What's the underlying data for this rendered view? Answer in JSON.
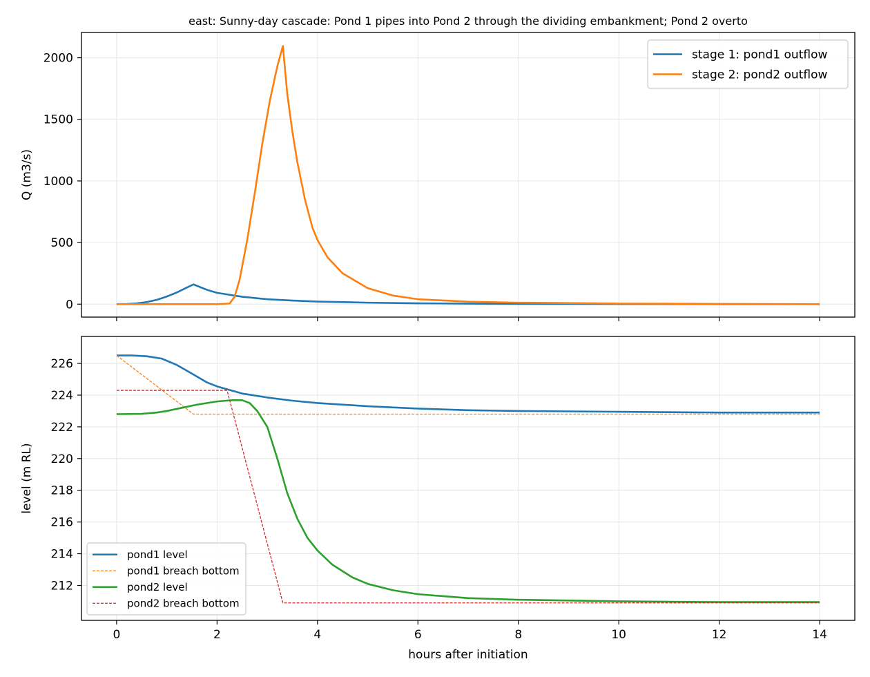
{
  "figure": {
    "title": "east: Sunny-day cascade: Pond 1 pipes into Pond 2 through the dividing embankment; Pond 2 overto"
  },
  "chart_data": [
    {
      "type": "line",
      "title": "east: Sunny-day cascade: Pond 1 pipes into Pond 2 through the dividing embankment; Pond 2 overto",
      "xlabel": "",
      "ylabel": "Q (m3/s)",
      "xlim": [
        -0.7,
        14.7
      ],
      "ylim": [
        -105,
        2205
      ],
      "xticks": [
        0,
        2,
        4,
        6,
        8,
        10,
        12,
        14
      ],
      "xtick_labels_visible": false,
      "yticks": [
        0,
        500,
        1000,
        1500,
        2000
      ],
      "grid": true,
      "legend_position": "top-right",
      "series": [
        {
          "name": "stage 1: pond1 outflow",
          "color": "#1f77b4",
          "dash": "solid",
          "x": [
            0,
            0.2,
            0.4,
            0.6,
            0.8,
            1.0,
            1.2,
            1.4,
            1.53,
            1.8,
            2.0,
            2.5,
            3.0,
            3.5,
            4.0,
            5.0,
            6.0,
            7.0,
            8.0,
            10.0,
            12.0,
            14.0
          ],
          "y": [
            0,
            1,
            6,
            17,
            35,
            62,
            95,
            135,
            160,
            116,
            92,
            60,
            40,
            29,
            21,
            12,
            7,
            4,
            2,
            1,
            0,
            0
          ]
        },
        {
          "name": "stage 2: pond2 outflow",
          "color": "#ff7f0e",
          "dash": "solid",
          "x": [
            0,
            1.0,
            2.0,
            2.25,
            2.35,
            2.45,
            2.6,
            2.75,
            2.9,
            3.05,
            3.2,
            3.31,
            3.4,
            3.5,
            3.6,
            3.75,
            3.9,
            4.0,
            4.2,
            4.5,
            5.0,
            5.5,
            6.0,
            7.0,
            8.0,
            10.0,
            12.0,
            14.0
          ],
          "y": [
            0,
            0,
            0,
            5,
            60,
            200,
            520,
            900,
            1300,
            1650,
            1930,
            2095,
            1700,
            1400,
            1150,
            850,
            620,
            520,
            380,
            250,
            130,
            70,
            40,
            20,
            12,
            5,
            2,
            0
          ]
        }
      ]
    },
    {
      "type": "line",
      "title": "",
      "xlabel": "hours after initiation",
      "ylabel": "level (m RL)",
      "xlim": [
        -0.7,
        14.7
      ],
      "ylim": [
        209.8,
        227.7
      ],
      "xticks": [
        0,
        2,
        4,
        6,
        8,
        10,
        12,
        14
      ],
      "yticks": [
        212,
        214,
        216,
        218,
        220,
        222,
        224,
        226
      ],
      "grid": true,
      "legend_position": "bottom-left",
      "series": [
        {
          "name": "pond1 level",
          "color": "#1f77b4",
          "dash": "solid",
          "x": [
            0,
            0.3,
            0.6,
            0.9,
            1.2,
            1.53,
            1.8,
            2.0,
            2.5,
            3.0,
            3.5,
            4.0,
            5.0,
            6.0,
            7.0,
            8.0,
            10.0,
            12.0,
            14.0
          ],
          "y": [
            226.5,
            226.5,
            226.45,
            226.3,
            225.9,
            225.3,
            224.8,
            224.55,
            224.1,
            223.85,
            223.65,
            223.5,
            223.3,
            223.15,
            223.05,
            223.0,
            222.95,
            222.9,
            222.9
          ]
        },
        {
          "name": "pond1 breach bottom",
          "color": "#ff7f0e",
          "dash": "4,2",
          "x": [
            0,
            1.53,
            14.0
          ],
          "y": [
            226.5,
            222.8,
            222.8
          ]
        },
        {
          "name": "pond2 level",
          "color": "#2ca02c",
          "dash": "solid",
          "x": [
            0,
            0.5,
            0.8,
            1.0,
            1.3,
            1.6,
            2.0,
            2.3,
            2.5,
            2.65,
            2.8,
            3.0,
            3.2,
            3.4,
            3.6,
            3.8,
            4.0,
            4.3,
            4.7,
            5.0,
            5.5,
            6.0,
            7.0,
            8.0,
            10.0,
            12.0,
            14.0
          ],
          "y": [
            222.8,
            222.82,
            222.9,
            223.0,
            223.2,
            223.4,
            223.6,
            223.68,
            223.68,
            223.5,
            223.0,
            222.0,
            220.0,
            217.8,
            216.2,
            215.0,
            214.2,
            213.3,
            212.5,
            212.1,
            211.7,
            211.45,
            211.2,
            211.1,
            211.0,
            210.95,
            210.95
          ]
        },
        {
          "name": "pond2 breach bottom",
          "color": "#d62728",
          "dash": "4,2",
          "x": [
            0,
            2.2,
            3.31,
            14.0
          ],
          "y": [
            224.3,
            224.3,
            210.9,
            210.9
          ]
        }
      ]
    }
  ]
}
